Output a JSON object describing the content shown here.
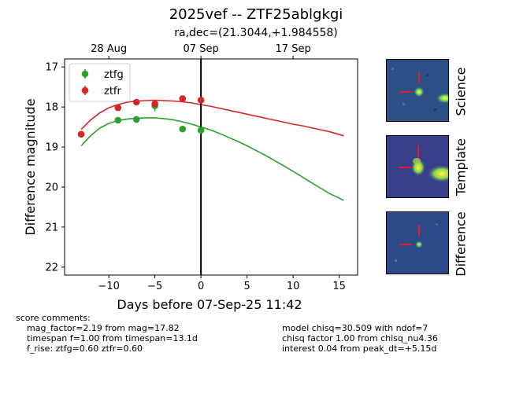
{
  "title": "2025vef -- ZTF25ablgkgi",
  "subtitle": "ra,dec=(21.3044,+1.984558)",
  "chart_data": {
    "type": "scatter",
    "xlabel": "Days before 07-Sep-25 11:42",
    "ylabel": "Difference magnitude",
    "xlim": [
      -14.8,
      17
    ],
    "ylim": [
      22.2,
      16.8
    ],
    "y_inverted": true,
    "xticks": [
      "−10",
      "−5",
      "0",
      "5",
      "10",
      "15"
    ],
    "xtick_values": [
      -10,
      -5,
      0,
      5,
      10,
      15
    ],
    "yticks": [
      "17",
      "18",
      "19",
      "20",
      "21",
      "22"
    ],
    "ytick_values": [
      17,
      18,
      19,
      20,
      21,
      22
    ],
    "top_axis_ticks": [
      "28 Aug",
      "07 Sep",
      "17 Sep"
    ],
    "top_axis_tick_values": [
      -10,
      0,
      10
    ],
    "reference_line_x": 0,
    "legend_location": "upper left",
    "series": [
      {
        "name": "ztfg",
        "color": "#2ca02c",
        "points": [
          {
            "x": -13,
            "y": 18.68,
            "err": 0.05
          },
          {
            "x": -9,
            "y": 18.33,
            "err": 0.04
          },
          {
            "x": -7,
            "y": 18.31,
            "err": 0.04
          },
          {
            "x": -5,
            "y": 17.97,
            "err": 0.14
          },
          {
            "x": -2,
            "y": 18.55,
            "err": 0.04
          },
          {
            "x": 0,
            "y": 18.58,
            "err": 0.05
          }
        ],
        "model": [
          [
            -13,
            18.97
          ],
          [
            -12,
            18.72
          ],
          [
            -11,
            18.53
          ],
          [
            -10,
            18.41
          ],
          [
            -9,
            18.34
          ],
          [
            -8,
            18.3
          ],
          [
            -7,
            18.28
          ],
          [
            -6,
            18.27
          ],
          [
            -5,
            18.27
          ],
          [
            -4,
            18.29
          ],
          [
            -3,
            18.32
          ],
          [
            -2,
            18.37
          ],
          [
            -1,
            18.43
          ],
          [
            0,
            18.5
          ],
          [
            1,
            18.57
          ],
          [
            2,
            18.66
          ],
          [
            3,
            18.76
          ],
          [
            4,
            18.86
          ],
          [
            5,
            18.97
          ],
          [
            6,
            19.09
          ],
          [
            7,
            19.21
          ],
          [
            8,
            19.34
          ],
          [
            9,
            19.47
          ],
          [
            10,
            19.61
          ],
          [
            11,
            19.75
          ],
          [
            12,
            19.89
          ],
          [
            13,
            20.03
          ],
          [
            14,
            20.17
          ],
          [
            15.5,
            20.33
          ]
        ]
      },
      {
        "name": "ztfr",
        "color": "#d62728",
        "points": [
          {
            "x": -13,
            "y": 18.68,
            "err": 0.05
          },
          {
            "x": -9,
            "y": 18.02,
            "err": 0.04
          },
          {
            "x": -7,
            "y": 17.88,
            "err": 0.04
          },
          {
            "x": -5,
            "y": 17.92,
            "err": 0.08
          },
          {
            "x": -2,
            "y": 17.79,
            "err": 0.03
          },
          {
            "x": 0,
            "y": 17.83,
            "err": 0.04
          }
        ],
        "model": [
          [
            -13,
            18.56
          ],
          [
            -12,
            18.33
          ],
          [
            -11,
            18.15
          ],
          [
            -10,
            18.02
          ],
          [
            -9,
            17.94
          ],
          [
            -8,
            17.88
          ],
          [
            -7,
            17.85
          ],
          [
            -6,
            17.84
          ],
          [
            -5,
            17.83
          ],
          [
            -4,
            17.84
          ],
          [
            -3,
            17.85
          ],
          [
            -2,
            17.87
          ],
          [
            -1,
            17.9
          ],
          [
            0,
            17.94
          ],
          [
            1,
            17.98
          ],
          [
            2,
            18.03
          ],
          [
            3,
            18.08
          ],
          [
            4,
            18.13
          ],
          [
            5,
            18.18
          ],
          [
            6,
            18.23
          ],
          [
            7,
            18.28
          ],
          [
            8,
            18.33
          ],
          [
            9,
            18.38
          ],
          [
            10,
            18.43
          ],
          [
            11,
            18.47
          ],
          [
            12,
            18.52
          ],
          [
            13,
            18.57
          ],
          [
            14,
            18.62
          ],
          [
            15.5,
            18.72
          ]
        ]
      }
    ]
  },
  "stamps": [
    "Science",
    "Template",
    "Difference"
  ],
  "comments_left": {
    "header": "score comments:",
    "lines": [
      "mag_factor=2.19 from mag=17.82",
      "timespan f=1.00 from timespan=13.1d",
      "f_rise: ztfg=0.60 ztfr=0.60"
    ]
  },
  "comments_right": {
    "lines": [
      "model chisq=30.509 with ndof=7",
      "chisq factor 1.00 from chisq_nu4.36",
      "interest 0.04 from peak_dt=+5.15d"
    ]
  }
}
